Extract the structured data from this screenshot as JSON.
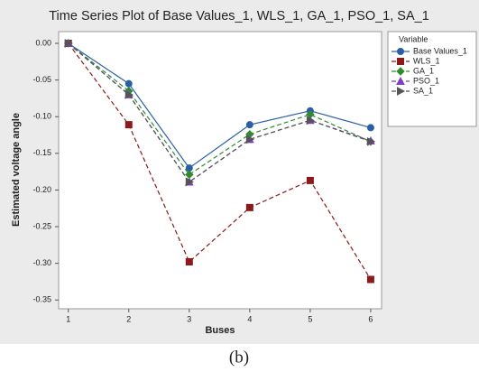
{
  "chart_data": {
    "type": "line",
    "title": "Time Series Plot of Base Values_1, WLS_1, GA_1, PSO_1, SA_1",
    "x_label": "Buses",
    "y_label": "Estimated voltage angle",
    "caption": "(b)",
    "legend_title": "Variable",
    "legend": "right",
    "x": [
      1,
      2,
      3,
      4,
      5,
      6
    ],
    "xlim": [
      0.84,
      6.18
    ],
    "xticks": [
      1,
      2,
      3,
      4,
      5,
      6
    ],
    "ylim": [
      -0.362,
      0.016
    ],
    "yticks": [
      {
        "value": 0,
        "label": "0.00"
      },
      {
        "value": -0.05,
        "label": "-0.05"
      },
      {
        "value": -0.1,
        "label": "-0.10"
      },
      {
        "value": -0.15,
        "label": "-0.15"
      },
      {
        "value": -0.2,
        "label": "-0.20"
      },
      {
        "value": -0.25,
        "label": "-0.25"
      },
      {
        "value": -0.3,
        "label": "-0.30"
      },
      {
        "value": -0.35,
        "label": "-0.35"
      }
    ],
    "series": [
      {
        "name": "Base Values_1",
        "color": "#2a5fa5",
        "marker": "circle",
        "line_style": "solid",
        "values": [
          0,
          -0.055,
          -0.17,
          -0.111,
          -0.092,
          -0.115
        ]
      },
      {
        "name": "WLS_1",
        "color": "#8b1a1a",
        "marker": "square",
        "line_style": "dashed",
        "values": [
          0,
          -0.111,
          -0.298,
          -0.224,
          -0.187,
          -0.322
        ]
      },
      {
        "name": "GA_1",
        "color": "#2e8b2e",
        "marker": "diamond",
        "line_style": "dashed",
        "values": [
          0,
          -0.065,
          -0.179,
          -0.124,
          -0.097,
          -0.134
        ]
      },
      {
        "name": "PSO_1",
        "color": "#7f3fbf",
        "marker": "triangle-up",
        "line_style": "dashed",
        "values": [
          0,
          -0.07,
          -0.189,
          -0.131,
          -0.105,
          -0.133
        ]
      },
      {
        "name": "SA_1",
        "color": "#555555",
        "marker": "triangle-right",
        "line_style": "dashed",
        "values": [
          0,
          -0.07,
          -0.189,
          -0.131,
          -0.105,
          -0.134
        ]
      }
    ]
  }
}
